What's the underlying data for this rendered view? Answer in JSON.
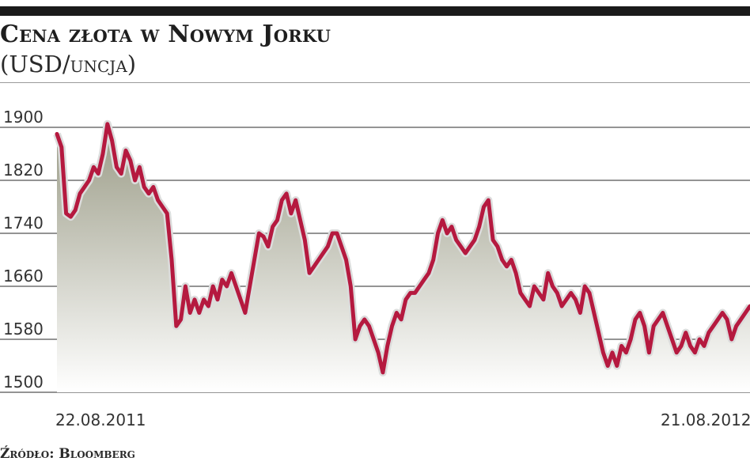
{
  "title": "Cena złota w Nowym Jorku",
  "subtitle": "(USD/uncja)",
  "source": "Źródło: Bloomberg",
  "colors": {
    "line": "#b5193f",
    "area_top": "#9a9b86",
    "area_bottom": "#ffffff",
    "grid": "#555555",
    "top_bar": "#1a1a1a"
  },
  "chart_data": {
    "type": "area",
    "title": "Cena złota w Nowym Jorku",
    "subtitle": "(USD/uncja)",
    "xlabel": "",
    "ylabel": "",
    "ylim": [
      1500,
      1900
    ],
    "yticks": [
      1900,
      1820,
      1740,
      1660,
      1580,
      1500
    ],
    "xticks": [
      "22.08.2011",
      "21.08.2012"
    ],
    "grid": true,
    "legend": "none",
    "series": [
      {
        "x_start": "22.08.2011",
        "x_end": "21.08.2012",
        "values": [
          1890,
          1870,
          1770,
          1765,
          1775,
          1800,
          1810,
          1820,
          1840,
          1830,
          1860,
          1905,
          1880,
          1840,
          1830,
          1865,
          1850,
          1820,
          1840,
          1810,
          1800,
          1810,
          1790,
          1780,
          1770,
          1700,
          1600,
          1610,
          1660,
          1620,
          1640,
          1620,
          1640,
          1630,
          1660,
          1640,
          1670,
          1660,
          1680,
          1660,
          1640,
          1620,
          1660,
          1700,
          1740,
          1735,
          1720,
          1750,
          1760,
          1790,
          1800,
          1770,
          1790,
          1760,
          1730,
          1680,
          1690,
          1700,
          1710,
          1720,
          1740,
          1740,
          1720,
          1700,
          1660,
          1580,
          1600,
          1610,
          1600,
          1580,
          1560,
          1530,
          1570,
          1600,
          1620,
          1610,
          1640,
          1650,
          1650,
          1660,
          1670,
          1680,
          1700,
          1740,
          1760,
          1740,
          1750,
          1730,
          1720,
          1710,
          1720,
          1730,
          1750,
          1780,
          1790,
          1730,
          1720,
          1700,
          1690,
          1700,
          1680,
          1650,
          1640,
          1630,
          1660,
          1650,
          1640,
          1680,
          1660,
          1650,
          1630,
          1640,
          1650,
          1640,
          1620,
          1660,
          1650,
          1620,
          1590,
          1560,
          1540,
          1560,
          1540,
          1570,
          1560,
          1580,
          1610,
          1620,
          1600,
          1560,
          1600,
          1610,
          1620,
          1600,
          1580,
          1560,
          1570,
          1590,
          1570,
          1560,
          1580,
          1570,
          1590,
          1600,
          1610,
          1620,
          1610,
          1580,
          1600,
          1610,
          1620,
          1630
        ]
      }
    ]
  }
}
